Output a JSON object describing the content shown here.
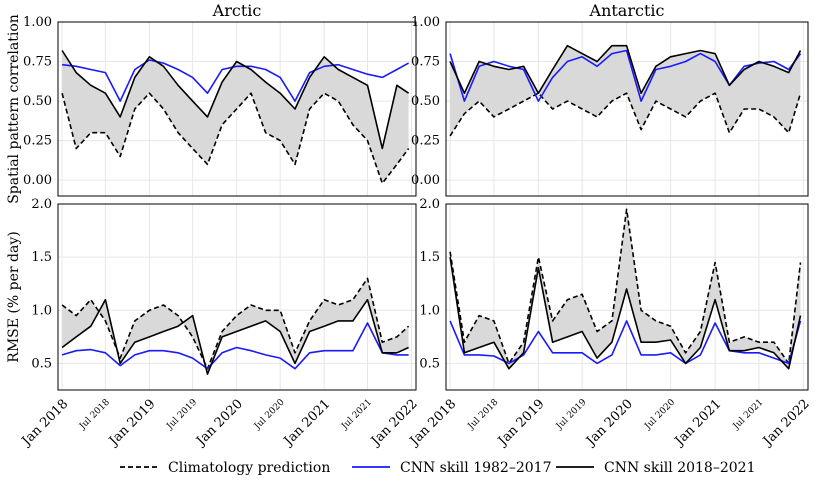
{
  "chart_data": [
    {
      "type": "line",
      "title": "Arctic",
      "ylabel": "Spatial pattern correlation",
      "ylim": [
        -0.1,
        1.0
      ],
      "yticks": [
        "0.00",
        "0.25",
        "0.50",
        "0.75",
        "1.00"
      ],
      "xlim": [
        "2017-12-15",
        "2022-01-20"
      ],
      "series": [
        {
          "name": "Climatology prediction",
          "style": "dashed",
          "color": "#000000",
          "x": [
            "2018-01-01",
            "2018-03-01",
            "2018-05-01",
            "2018-07-01",
            "2018-09-01",
            "2018-11-01",
            "2019-01-01",
            "2019-03-01",
            "2019-05-01",
            "2019-07-01",
            "2019-09-01",
            "2019-11-01",
            "2020-01-01",
            "2020-03-01",
            "2020-05-01",
            "2020-07-01",
            "2020-09-01",
            "2020-11-01",
            "2021-01-01",
            "2021-03-01",
            "2021-05-01",
            "2021-07-01",
            "2021-09-01",
            "2021-11-01",
            "2021-12-20"
          ],
          "y": [
            0.55,
            0.2,
            0.3,
            0.3,
            0.15,
            0.45,
            0.55,
            0.45,
            0.3,
            0.2,
            0.1,
            0.35,
            0.45,
            0.55,
            0.3,
            0.25,
            0.1,
            0.45,
            0.55,
            0.5,
            0.35,
            0.25,
            -0.02,
            0.1,
            0.2
          ]
        },
        {
          "name": "CNN skill 1982–2017",
          "style": "solid",
          "color": "#1a1aff",
          "x": [
            "2018-01-01",
            "2018-03-01",
            "2018-05-01",
            "2018-07-01",
            "2018-09-01",
            "2018-11-01",
            "2019-01-01",
            "2019-03-01",
            "2019-05-01",
            "2019-07-01",
            "2019-09-01",
            "2019-11-01",
            "2020-01-01",
            "2020-03-01",
            "2020-05-01",
            "2020-07-01",
            "2020-09-01",
            "2020-11-01",
            "2021-01-01",
            "2021-03-01",
            "2021-05-01",
            "2021-07-01",
            "2021-09-01",
            "2021-11-01",
            "2021-12-20"
          ],
          "y": [
            0.73,
            0.72,
            0.7,
            0.68,
            0.5,
            0.7,
            0.76,
            0.74,
            0.7,
            0.65,
            0.55,
            0.7,
            0.72,
            0.72,
            0.7,
            0.65,
            0.5,
            0.68,
            0.72,
            0.73,
            0.7,
            0.67,
            0.65,
            0.7,
            0.74
          ]
        },
        {
          "name": "CNN skill 2018–2021",
          "style": "solid",
          "color": "#000000",
          "x": [
            "2018-01-01",
            "2018-03-01",
            "2018-05-01",
            "2018-07-01",
            "2018-09-01",
            "2018-11-01",
            "2019-01-01",
            "2019-03-01",
            "2019-05-01",
            "2019-07-01",
            "2019-09-01",
            "2019-11-01",
            "2020-01-01",
            "2020-03-01",
            "2020-05-01",
            "2020-07-01",
            "2020-09-01",
            "2020-11-01",
            "2021-01-01",
            "2021-03-01",
            "2021-05-01",
            "2021-07-01",
            "2021-09-01",
            "2021-11-01",
            "2021-12-20"
          ],
          "y": [
            0.82,
            0.68,
            0.6,
            0.55,
            0.4,
            0.65,
            0.78,
            0.72,
            0.6,
            0.5,
            0.4,
            0.62,
            0.75,
            0.7,
            0.62,
            0.55,
            0.45,
            0.65,
            0.78,
            0.7,
            0.65,
            0.6,
            0.2,
            0.6,
            0.55
          ]
        }
      ]
    },
    {
      "type": "line",
      "title": "Antarctic",
      "ylabel": "",
      "ylim": [
        -0.1,
        1.0
      ],
      "yticks": [
        "0.00",
        "0.25",
        "0.50",
        "0.75",
        "1.00"
      ],
      "xlim": [
        "2017-12-15",
        "2022-01-20"
      ],
      "series": [
        {
          "name": "Climatology prediction",
          "style": "dashed",
          "color": "#000000",
          "x": [
            "2018-01-01",
            "2018-03-01",
            "2018-05-01",
            "2018-07-01",
            "2018-09-01",
            "2018-11-01",
            "2019-01-01",
            "2019-03-01",
            "2019-05-01",
            "2019-07-01",
            "2019-09-01",
            "2019-11-01",
            "2020-01-01",
            "2020-03-01",
            "2020-05-01",
            "2020-07-01",
            "2020-09-01",
            "2020-11-01",
            "2021-01-01",
            "2021-03-01",
            "2021-05-01",
            "2021-07-01",
            "2021-09-01",
            "2021-11-01",
            "2021-12-20"
          ],
          "y": [
            0.28,
            0.42,
            0.5,
            0.4,
            0.45,
            0.5,
            0.55,
            0.45,
            0.5,
            0.45,
            0.4,
            0.5,
            0.55,
            0.32,
            0.5,
            0.45,
            0.4,
            0.5,
            0.55,
            0.3,
            0.45,
            0.45,
            0.4,
            0.3,
            0.55
          ]
        },
        {
          "name": "CNN skill 1982–2017",
          "style": "solid",
          "color": "#1a1aff",
          "x": [
            "2018-01-01",
            "2018-03-01",
            "2018-05-01",
            "2018-07-01",
            "2018-09-01",
            "2018-11-01",
            "2019-01-01",
            "2019-03-01",
            "2019-05-01",
            "2019-07-01",
            "2019-09-01",
            "2019-11-01",
            "2020-01-01",
            "2020-03-01",
            "2020-05-01",
            "2020-07-01",
            "2020-09-01",
            "2020-11-01",
            "2021-01-01",
            "2021-03-01",
            "2021-05-01",
            "2021-07-01",
            "2021-09-01",
            "2021-11-01",
            "2021-12-20"
          ],
          "y": [
            0.8,
            0.5,
            0.72,
            0.75,
            0.72,
            0.7,
            0.5,
            0.65,
            0.75,
            0.78,
            0.72,
            0.8,
            0.82,
            0.5,
            0.7,
            0.72,
            0.75,
            0.8,
            0.75,
            0.6,
            0.72,
            0.74,
            0.75,
            0.7,
            0.8
          ]
        },
        {
          "name": "CNN skill 2018–2021",
          "style": "solid",
          "color": "#000000",
          "x": [
            "2018-01-01",
            "2018-03-01",
            "2018-05-01",
            "2018-07-01",
            "2018-09-01",
            "2018-11-01",
            "2019-01-01",
            "2019-03-01",
            "2019-05-01",
            "2019-07-01",
            "2019-09-01",
            "2019-11-01",
            "2020-01-01",
            "2020-03-01",
            "2020-05-01",
            "2020-07-01",
            "2020-09-01",
            "2020-11-01",
            "2021-01-01",
            "2021-03-01",
            "2021-05-01",
            "2021-07-01",
            "2021-09-01",
            "2021-11-01",
            "2021-12-20"
          ],
          "y": [
            0.75,
            0.55,
            0.75,
            0.72,
            0.7,
            0.72,
            0.55,
            0.7,
            0.85,
            0.8,
            0.75,
            0.85,
            0.85,
            0.55,
            0.72,
            0.78,
            0.8,
            0.82,
            0.8,
            0.6,
            0.7,
            0.75,
            0.72,
            0.68,
            0.82
          ]
        }
      ]
    },
    {
      "type": "line",
      "title": "",
      "ylabel": "RMSE (% per day)",
      "ylim": [
        0.25,
        2.0
      ],
      "yticks": [
        "0.5",
        "1.0",
        "1.5",
        "2.0"
      ],
      "xlim": [
        "2017-12-15",
        "2022-01-20"
      ],
      "xticks": [
        "Jan 2018",
        "Jul 2018",
        "Jan 2019",
        "Jul 2019",
        "Jan 2020",
        "Jul 2020",
        "Jan 2021",
        "Jul 2021",
        "Jan 2022"
      ],
      "series": [
        {
          "name": "Climatology prediction",
          "style": "dashed",
          "color": "#000000",
          "x": [
            "2018-01-01",
            "2018-03-01",
            "2018-05-01",
            "2018-07-01",
            "2018-09-01",
            "2018-11-01",
            "2019-01-01",
            "2019-03-01",
            "2019-05-01",
            "2019-07-01",
            "2019-09-01",
            "2019-11-01",
            "2020-01-01",
            "2020-03-01",
            "2020-05-01",
            "2020-07-01",
            "2020-09-01",
            "2020-11-01",
            "2021-01-01",
            "2021-03-01",
            "2021-05-01",
            "2021-07-01",
            "2021-09-01",
            "2021-11-01",
            "2021-12-20"
          ],
          "y": [
            1.05,
            0.95,
            1.1,
            0.9,
            0.55,
            0.9,
            1.0,
            1.05,
            0.95,
            0.75,
            0.45,
            0.8,
            0.95,
            1.05,
            1.0,
            1.0,
            0.6,
            0.9,
            1.1,
            1.05,
            1.1,
            1.3,
            0.7,
            0.75,
            0.85
          ]
        },
        {
          "name": "CNN skill 1982–2017",
          "style": "solid",
          "color": "#1a1aff",
          "x": [
            "2018-01-01",
            "2018-03-01",
            "2018-05-01",
            "2018-07-01",
            "2018-09-01",
            "2018-11-01",
            "2019-01-01",
            "2019-03-01",
            "2019-05-01",
            "2019-07-01",
            "2019-09-01",
            "2019-11-01",
            "2020-01-01",
            "2020-03-01",
            "2020-05-01",
            "2020-07-01",
            "2020-09-01",
            "2020-11-01",
            "2021-01-01",
            "2021-03-01",
            "2021-05-01",
            "2021-07-01",
            "2021-09-01",
            "2021-11-01",
            "2021-12-20"
          ],
          "y": [
            0.58,
            0.62,
            0.63,
            0.6,
            0.48,
            0.58,
            0.62,
            0.62,
            0.6,
            0.55,
            0.45,
            0.6,
            0.65,
            0.62,
            0.58,
            0.55,
            0.45,
            0.6,
            0.62,
            0.62,
            0.62,
            0.88,
            0.6,
            0.58,
            0.58
          ]
        },
        {
          "name": "CNN skill 2018–2021",
          "style": "solid",
          "color": "#000000",
          "x": [
            "2018-01-01",
            "2018-03-01",
            "2018-05-01",
            "2018-07-01",
            "2018-09-01",
            "2018-11-01",
            "2019-01-01",
            "2019-03-01",
            "2019-05-01",
            "2019-07-01",
            "2019-09-01",
            "2019-11-01",
            "2020-01-01",
            "2020-03-01",
            "2020-05-01",
            "2020-07-01",
            "2020-09-01",
            "2020-11-01",
            "2021-01-01",
            "2021-03-01",
            "2021-05-01",
            "2021-07-01",
            "2021-09-01",
            "2021-11-01",
            "2021-12-20"
          ],
          "y": [
            0.65,
            0.75,
            0.85,
            1.1,
            0.5,
            0.7,
            0.75,
            0.8,
            0.85,
            0.95,
            0.4,
            0.75,
            0.8,
            0.85,
            0.9,
            0.8,
            0.5,
            0.8,
            0.85,
            0.9,
            0.9,
            1.1,
            0.6,
            0.6,
            0.65
          ]
        }
      ]
    },
    {
      "type": "line",
      "title": "",
      "ylabel": "",
      "ylim": [
        0.25,
        2.0
      ],
      "yticks": [
        "0.5",
        "1.0",
        "1.5",
        "2.0"
      ],
      "xlim": [
        "2017-12-15",
        "2022-01-20"
      ],
      "xticks": [
        "Jan 2018",
        "Jul 2018",
        "Jan 2019",
        "Jul 2019",
        "Jan 2020",
        "Jul 2020",
        "Jan 2021",
        "Jul 2021",
        "Jan 2022"
      ],
      "series": [
        {
          "name": "Climatology prediction",
          "style": "dashed",
          "color": "#000000",
          "x": [
            "2018-01-01",
            "2018-03-01",
            "2018-05-01",
            "2018-07-01",
            "2018-09-01",
            "2018-11-01",
            "2019-01-01",
            "2019-03-01",
            "2019-05-01",
            "2019-07-01",
            "2019-09-01",
            "2019-11-01",
            "2020-01-01",
            "2020-03-01",
            "2020-05-01",
            "2020-07-01",
            "2020-09-01",
            "2020-11-01",
            "2021-01-01",
            "2021-03-01",
            "2021-05-01",
            "2021-07-01",
            "2021-09-01",
            "2021-11-01",
            "2021-12-20"
          ],
          "y": [
            1.55,
            0.7,
            0.95,
            0.9,
            0.5,
            0.7,
            1.5,
            0.9,
            1.1,
            1.15,
            0.8,
            0.9,
            1.95,
            1.0,
            0.9,
            0.85,
            0.6,
            0.8,
            1.45,
            0.7,
            0.75,
            0.7,
            0.7,
            0.5,
            1.45
          ]
        },
        {
          "name": "CNN skill 1982–2017",
          "style": "solid",
          "color": "#1a1aff",
          "x": [
            "2018-01-01",
            "2018-03-01",
            "2018-05-01",
            "2018-07-01",
            "2018-09-01",
            "2018-11-01",
            "2019-01-01",
            "2019-03-01",
            "2019-05-01",
            "2019-07-01",
            "2019-09-01",
            "2019-11-01",
            "2020-01-01",
            "2020-03-01",
            "2020-05-01",
            "2020-07-01",
            "2020-09-01",
            "2020-11-01",
            "2021-01-01",
            "2021-03-01",
            "2021-05-01",
            "2021-07-01",
            "2021-09-01",
            "2021-11-01",
            "2021-12-20"
          ],
          "y": [
            0.9,
            0.58,
            0.58,
            0.57,
            0.5,
            0.58,
            0.8,
            0.6,
            0.6,
            0.6,
            0.5,
            0.58,
            0.9,
            0.58,
            0.58,
            0.6,
            0.5,
            0.58,
            0.88,
            0.62,
            0.6,
            0.6,
            0.55,
            0.5,
            0.9
          ]
        },
        {
          "name": "CNN skill 2018–2021",
          "style": "solid",
          "color": "#000000",
          "x": [
            "2018-01-01",
            "2018-03-01",
            "2018-05-01",
            "2018-07-01",
            "2018-09-01",
            "2018-11-01",
            "2019-01-01",
            "2019-03-01",
            "2019-05-01",
            "2019-07-01",
            "2019-09-01",
            "2019-11-01",
            "2020-01-01",
            "2020-03-01",
            "2020-05-01",
            "2020-07-01",
            "2020-09-01",
            "2020-11-01",
            "2021-01-01",
            "2021-03-01",
            "2021-05-01",
            "2021-07-01",
            "2021-09-01",
            "2021-11-01",
            "2021-12-20"
          ],
          "y": [
            1.5,
            0.6,
            0.65,
            0.7,
            0.45,
            0.6,
            1.4,
            0.7,
            0.75,
            0.8,
            0.55,
            0.7,
            1.2,
            0.7,
            0.7,
            0.72,
            0.5,
            0.65,
            1.1,
            0.62,
            0.62,
            0.65,
            0.6,
            0.45,
            0.95
          ]
        }
      ]
    }
  ],
  "legend": {
    "items": [
      {
        "label": "Climatology prediction",
        "style": "dashed",
        "color": "#000000"
      },
      {
        "label": "CNN skill 1982–2017",
        "style": "solid",
        "color": "#1a1aff"
      },
      {
        "label": "CNN skill 2018–2021",
        "style": "solid",
        "color": "#000000"
      }
    ]
  },
  "colors": {
    "fill": "#d9d9d9",
    "grid": "#e6e6e6",
    "climatology": "#000000",
    "cnn_train": "#1a1aff",
    "cnn_test": "#000000"
  }
}
